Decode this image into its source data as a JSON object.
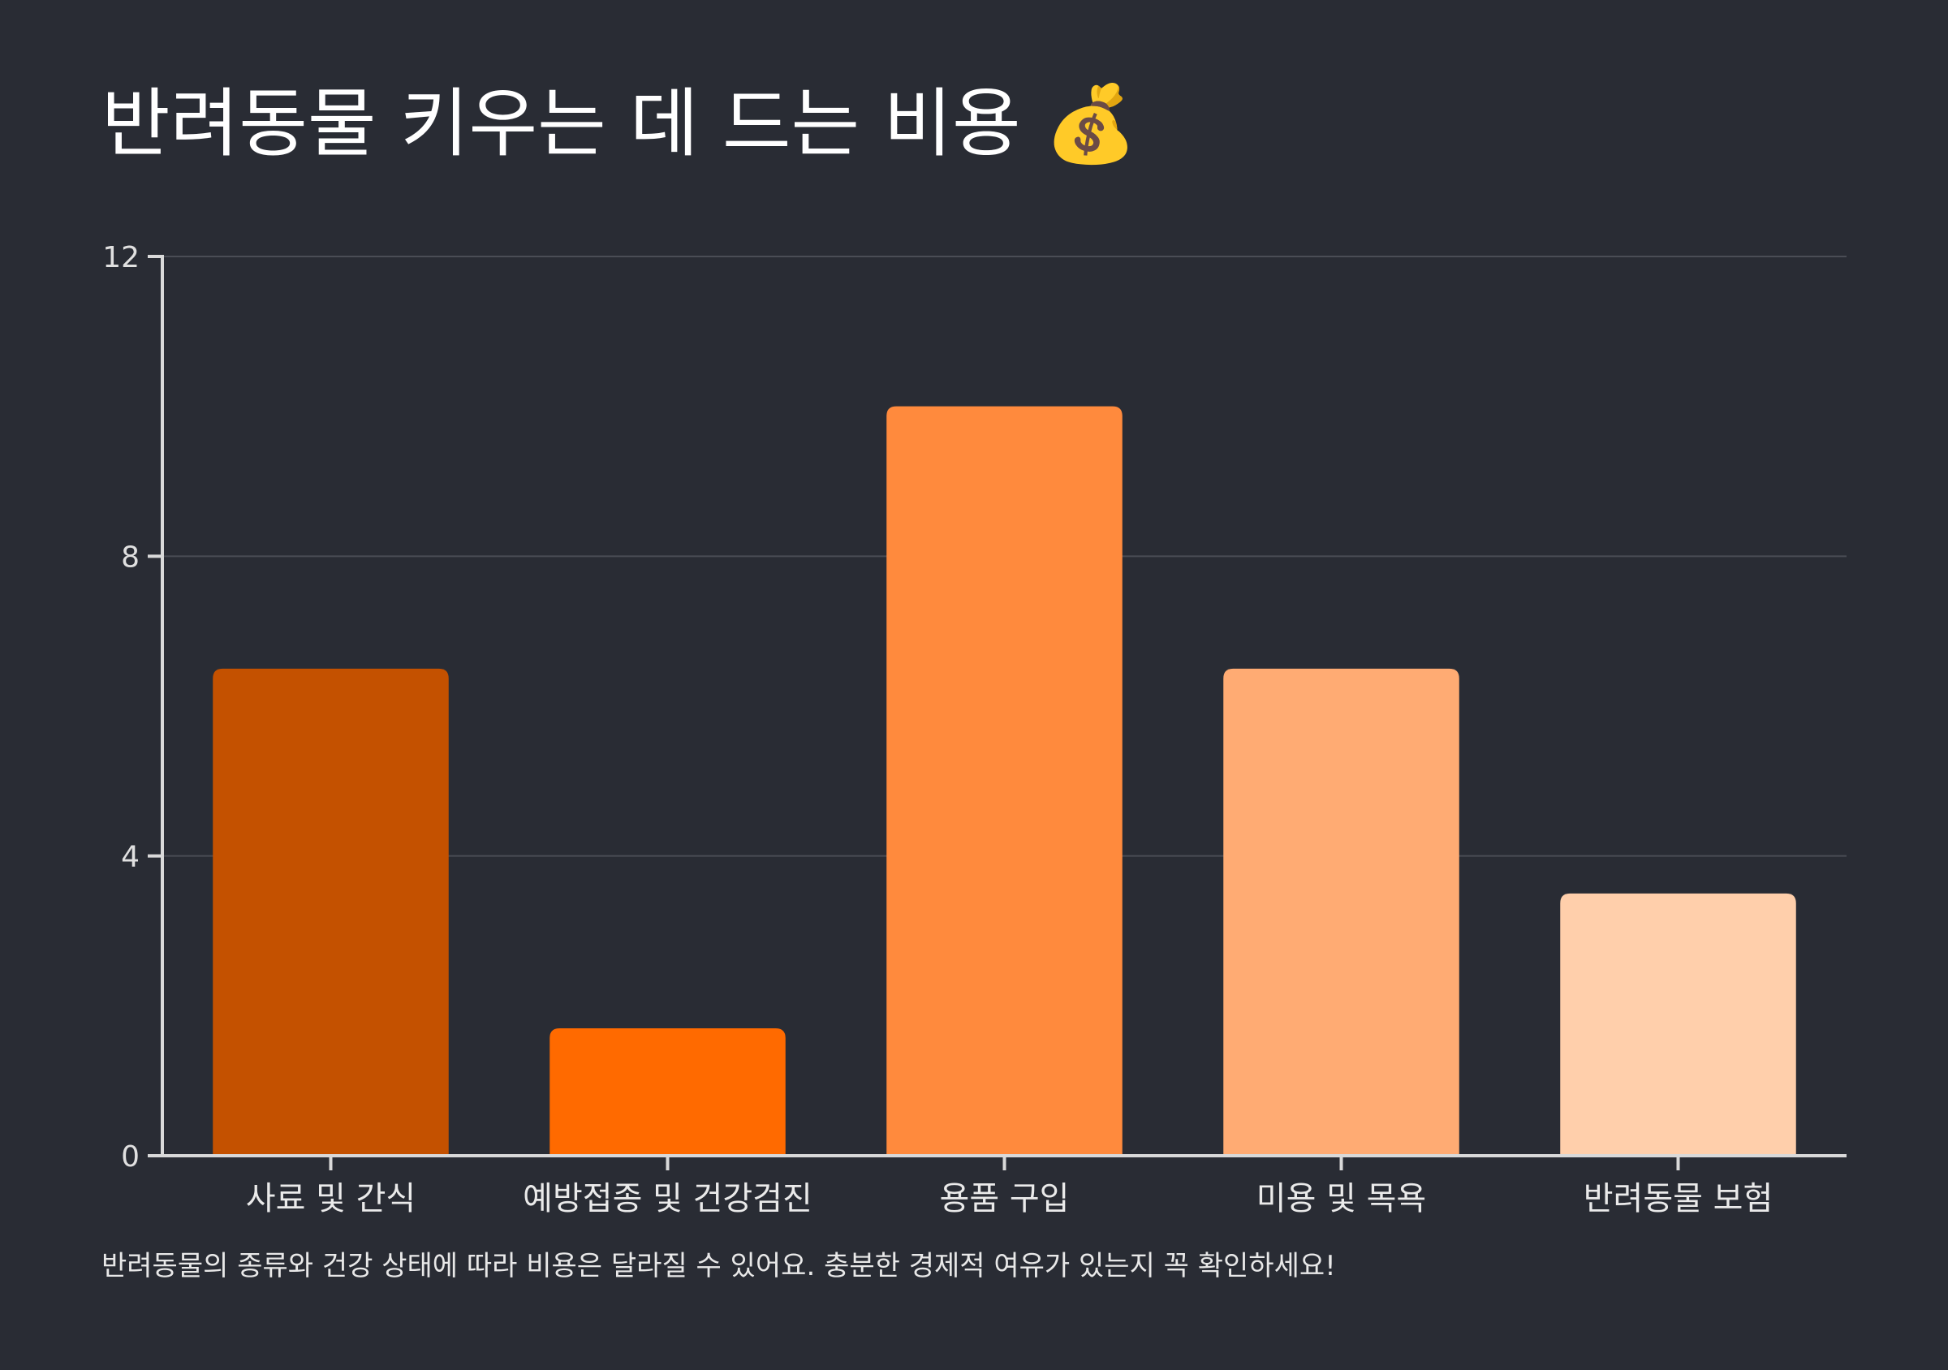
{
  "header": {
    "title": "반려동물 키우는 데 드는 비용 💰"
  },
  "footnote": "반려동물의 종류와 건강 상태에 따라 비용은 달라질 수 있어요. 충분한 경제적 여유가 있는지 꼭 확인하세요!",
  "colors": {
    "background": "#292c34",
    "axis": "#d9d9d9",
    "grid": "#4a4d55"
  },
  "chart_data": {
    "type": "bar",
    "categories": [
      "사료 및 간식",
      "예방접종 및 건강검진",
      "용품 구입",
      "미용 및 목욕",
      "반려동물 보험"
    ],
    "values": [
      6.5,
      1.7,
      10,
      6.5,
      3.5
    ],
    "colors": [
      "#c45100",
      "#ff6a00",
      "#ff8a3d",
      "#ffab73",
      "#ffcfab"
    ],
    "ylim": [
      0,
      12
    ],
    "yticks": [
      0,
      4,
      8,
      12
    ],
    "grid": true,
    "legend": "none",
    "xlabel": "",
    "ylabel": ""
  }
}
